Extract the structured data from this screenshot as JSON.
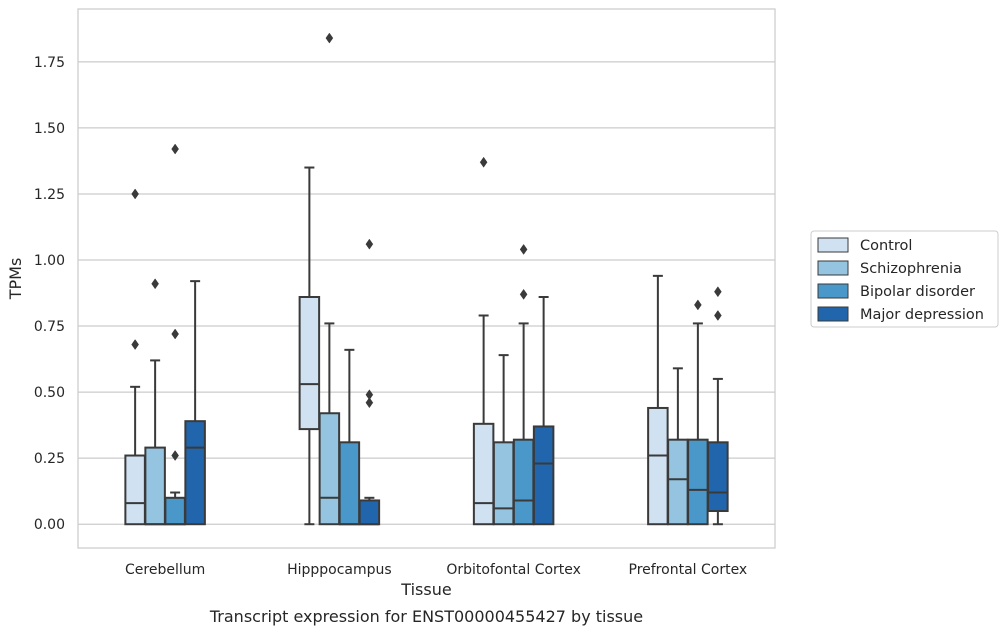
{
  "chart_data": {
    "type": "box",
    "caption": "Transcript expression for ENST00000455427 by tissue",
    "xlabel": "Tissue",
    "ylabel": "TPMs",
    "ylim": [
      -0.09,
      1.95
    ],
    "yticks": [
      0.0,
      0.25,
      0.5,
      0.75,
      1.0,
      1.25,
      1.5,
      1.75
    ],
    "ytick_labels": [
      "0.00",
      "0.25",
      "0.50",
      "0.75",
      "1.00",
      "1.25",
      "1.50",
      "1.75"
    ],
    "grid": "horizontal",
    "legend_position": "right",
    "categories": [
      "Cerebellum",
      "Hipppocampus",
      "Orbitofontal Cortex",
      "Prefrontal Cortex"
    ],
    "series": [
      {
        "name": "Control",
        "color": "#d0e1f2",
        "boxes": [
          {
            "whisker_low": 0.0,
            "q1": 0.0,
            "median": 0.08,
            "q3": 0.26,
            "whisker_high": 0.52,
            "outliers": [
              0.68,
              1.25
            ]
          },
          {
            "whisker_low": 0.0,
            "q1": 0.36,
            "median": 0.53,
            "q3": 0.86,
            "whisker_high": 1.35,
            "outliers": []
          },
          {
            "whisker_low": 0.0,
            "q1": 0.0,
            "median": 0.08,
            "q3": 0.38,
            "whisker_high": 0.79,
            "outliers": [
              1.37
            ]
          },
          {
            "whisker_low": 0.0,
            "q1": 0.0,
            "median": 0.26,
            "q3": 0.44,
            "whisker_high": 0.94,
            "outliers": []
          }
        ]
      },
      {
        "name": "Schizophrenia",
        "color": "#94c4df",
        "boxes": [
          {
            "whisker_low": 0.0,
            "q1": 0.0,
            "median": 0.0,
            "q3": 0.29,
            "whisker_high": 0.62,
            "outliers": [
              0.91
            ]
          },
          {
            "whisker_low": 0.0,
            "q1": 0.0,
            "median": 0.1,
            "q3": 0.42,
            "whisker_high": 0.76,
            "outliers": [
              1.84
            ]
          },
          {
            "whisker_low": 0.0,
            "q1": 0.0,
            "median": 0.06,
            "q3": 0.31,
            "whisker_high": 0.64,
            "outliers": []
          },
          {
            "whisker_low": 0.0,
            "q1": 0.0,
            "median": 0.17,
            "q3": 0.32,
            "whisker_high": 0.59,
            "outliers": []
          }
        ]
      },
      {
        "name": "Bipolar disorder",
        "color": "#4a98c9",
        "boxes": [
          {
            "whisker_low": 0.0,
            "q1": 0.0,
            "median": 0.0,
            "q3": 0.1,
            "whisker_high": 0.12,
            "outliers": [
              0.26,
              0.72,
              1.42
            ]
          },
          {
            "whisker_low": 0.0,
            "q1": 0.0,
            "median": 0.0,
            "q3": 0.31,
            "whisker_high": 0.66,
            "outliers": []
          },
          {
            "whisker_low": 0.0,
            "q1": 0.0,
            "median": 0.09,
            "q3": 0.32,
            "whisker_high": 0.76,
            "outliers": [
              0.87,
              1.04
            ]
          },
          {
            "whisker_low": 0.0,
            "q1": 0.0,
            "median": 0.13,
            "q3": 0.32,
            "whisker_high": 0.76,
            "outliers": [
              0.83
            ]
          }
        ]
      },
      {
        "name": "Major depression",
        "color": "#2166ac",
        "boxes": [
          {
            "whisker_low": 0.0,
            "q1": 0.0,
            "median": 0.29,
            "q3": 0.39,
            "whisker_high": 0.92,
            "outliers": []
          },
          {
            "whisker_low": 0.0,
            "q1": 0.0,
            "median": 0.0,
            "q3": 0.09,
            "whisker_high": 0.1,
            "outliers": [
              0.46,
              0.49,
              1.06
            ]
          },
          {
            "whisker_low": 0.0,
            "q1": 0.0,
            "median": 0.23,
            "q3": 0.37,
            "whisker_high": 0.86,
            "outliers": []
          },
          {
            "whisker_low": 0.0,
            "q1": 0.05,
            "median": 0.12,
            "q3": 0.31,
            "whisker_high": 0.55,
            "outliers": [
              0.79,
              0.88
            ]
          }
        ]
      }
    ]
  }
}
